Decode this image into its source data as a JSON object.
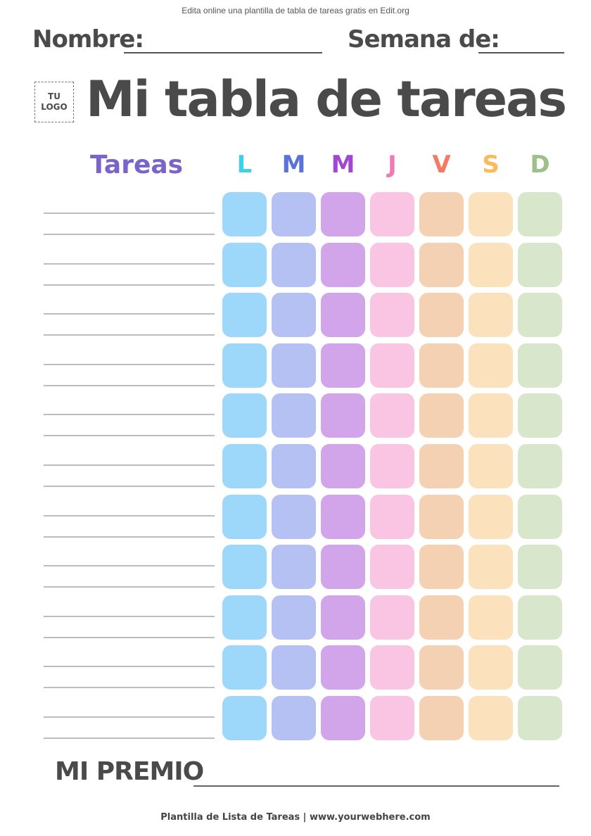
{
  "top_note": "Edita online una plantilla de tabla de tareas gratis en Edit.org",
  "name_label": "Nombre:",
  "week_label": "Semana de:",
  "logo": {
    "line1": "TU",
    "line2": "LOGO"
  },
  "title": "Mi tabla de tareas",
  "tasks_header": "Tareas",
  "days": [
    {
      "label": "L",
      "color": "#3fd0e8",
      "box": "#9dd8fb"
    },
    {
      "label": "M",
      "color": "#5b73d8",
      "box": "#b6c1f3"
    },
    {
      "label": "M",
      "color": "#a246d4",
      "box": "#d2a5ea"
    },
    {
      "label": "J",
      "color": "#ee7bb8",
      "box": "#f9c5e2"
    },
    {
      "label": "V",
      "color": "#f67a62",
      "box": "#f5d1b3"
    },
    {
      "label": "S",
      "color": "#fbbb5a",
      "box": "#fbe1bc"
    },
    {
      "label": "D",
      "color": "#9dc08a",
      "box": "#d8e7cc"
    }
  ],
  "task_rows": 11,
  "prize_label": "MI PREMIO",
  "footer": "Plantilla de Lista de Tareas | www.yourwebhere.com"
}
